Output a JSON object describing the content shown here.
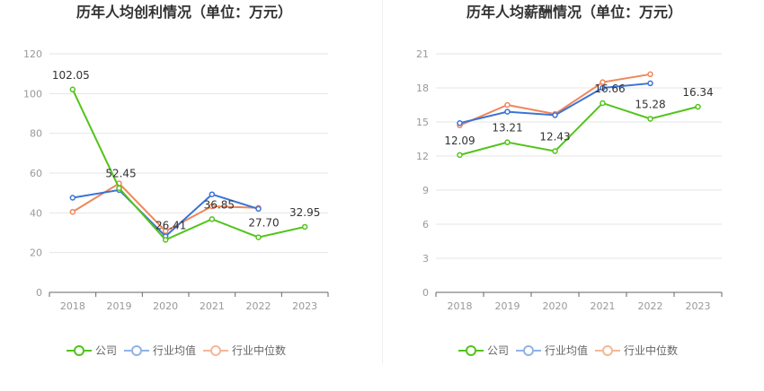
{
  "colors": {
    "company": "#52c41a",
    "industry_avg": "#3b73d6",
    "industry_median": "#f0865a",
    "grid": "#e6e6e6",
    "axis": "#666666",
    "legend_company": "#52c41a",
    "legend_avg": "#91b3e8",
    "legend_median": "#f4b79a"
  },
  "legend": {
    "company": "公司",
    "industry_avg": "行业均值",
    "industry_median": "行业中位数"
  },
  "chart_data": [
    {
      "type": "line",
      "title": "历年人均创利情况（单位：万元）",
      "categories": [
        "2018",
        "2019",
        "2020",
        "2021",
        "2022",
        "2023"
      ],
      "ylim": [
        0,
        120
      ],
      "yticks": [
        "0",
        "20",
        "40",
        "60",
        "80",
        "100",
        "120"
      ],
      "series": [
        {
          "name": "公司",
          "key": "company",
          "values": [
            102.05,
            52.45,
            26.41,
            36.85,
            27.7,
            32.95
          ],
          "labels": [
            "102.05",
            "52.45",
            "26.41",
            "36.85",
            "27.70",
            "32.95"
          ]
        },
        {
          "name": "行业均值",
          "key": "industry_avg",
          "values": [
            47.6,
            51.5,
            28.2,
            49.3,
            42.0,
            null
          ]
        },
        {
          "name": "行业中位数",
          "key": "industry_median",
          "values": [
            40.5,
            54.8,
            30.8,
            43.3,
            42.5,
            null
          ]
        }
      ]
    },
    {
      "type": "line",
      "title": "历年人均薪酬情况（单位：万元）",
      "categories": [
        "2018",
        "2019",
        "2020",
        "2021",
        "2022",
        "2023"
      ],
      "ylim": [
        0,
        21
      ],
      "yticks": [
        "0",
        "3",
        "6",
        "9",
        "12",
        "15",
        "18",
        "21"
      ],
      "series": [
        {
          "name": "公司",
          "key": "company",
          "values": [
            12.09,
            13.21,
            12.43,
            16.66,
            15.28,
            16.34
          ],
          "labels": [
            "12.09",
            "13.21",
            "12.43",
            "16.66",
            "15.28",
            "16.34"
          ]
        },
        {
          "name": "行业均值",
          "key": "industry_avg",
          "values": [
            14.9,
            15.9,
            15.6,
            18.0,
            18.4,
            null
          ]
        },
        {
          "name": "行业中位数",
          "key": "industry_median",
          "values": [
            14.7,
            16.5,
            15.7,
            18.5,
            19.2,
            null
          ]
        }
      ]
    }
  ]
}
